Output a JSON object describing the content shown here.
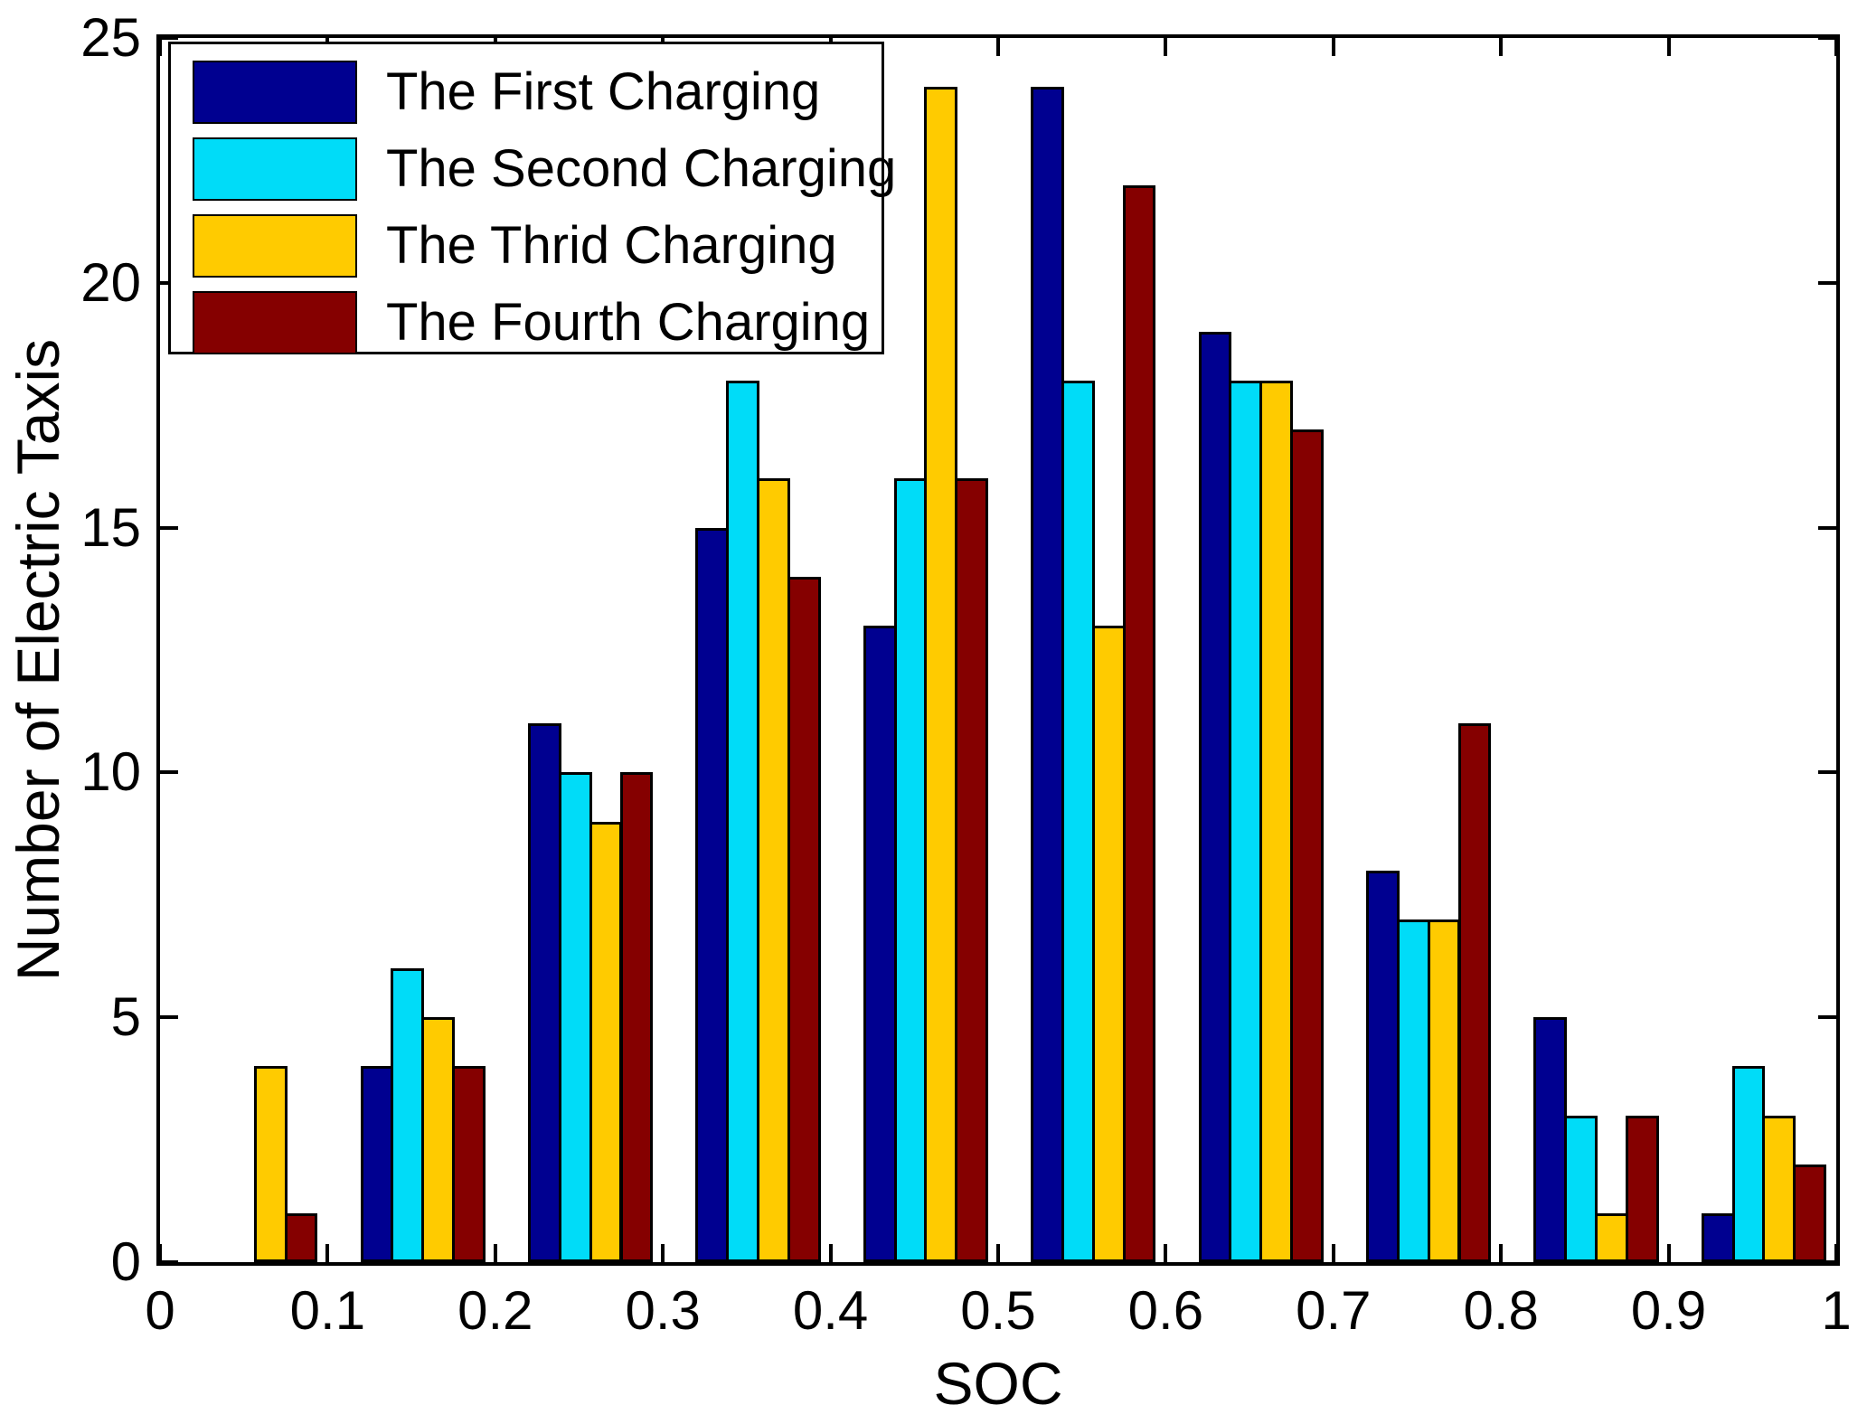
{
  "chart_data": {
    "type": "bar",
    "title": "",
    "xlabel": "SOC",
    "ylabel": "Number of Electric Taxis",
    "xlim": [
      0,
      1
    ],
    "ylim": [
      0,
      25
    ],
    "grid": false,
    "legend_position": "top-left",
    "x_tick_labels": [
      "0",
      "0.1",
      "0.2",
      "0.3",
      "0.4",
      "0.5",
      "0.6",
      "0.7",
      "0.8",
      "0.9",
      "1"
    ],
    "x_tick_values": [
      0,
      0.1,
      0.2,
      0.3,
      0.4,
      0.5,
      0.6,
      0.7,
      0.8,
      0.9,
      1
    ],
    "y_tick_values": [
      0,
      5,
      10,
      15,
      20,
      25
    ],
    "bin_edges": [
      0,
      0.1,
      0.2,
      0.3,
      0.4,
      0.5,
      0.6,
      0.7,
      0.8,
      0.9,
      1.0
    ],
    "bin_centers": [
      0.05,
      0.15,
      0.25,
      0.35,
      0.45,
      0.55,
      0.65,
      0.75,
      0.85,
      0.95
    ],
    "axis_color": "#000000",
    "background_color": "#ffffff",
    "series": [
      {
        "name": "The First Charging",
        "color": "#000090",
        "values": [
          0,
          4,
          11,
          15,
          13,
          24,
          19,
          8,
          5,
          1
        ]
      },
      {
        "name": "The Second Charging",
        "color": "#00DCF8",
        "values": [
          0,
          6,
          10,
          18,
          16,
          18,
          18,
          7,
          3,
          4
        ]
      },
      {
        "name": "The Thrid Charging",
        "color": "#FFCB00",
        "values": [
          4,
          5,
          9,
          16,
          24,
          13,
          18,
          7,
          1,
          3
        ]
      },
      {
        "name": "The Fourth Charging",
        "color": "#850000",
        "values": [
          1,
          4,
          10,
          14,
          16,
          22,
          17,
          11,
          3,
          2
        ]
      }
    ]
  }
}
